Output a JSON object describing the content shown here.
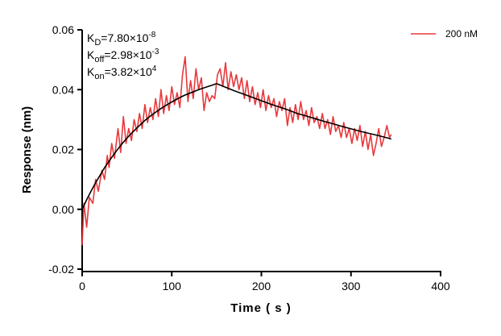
{
  "chart_data": {
    "type": "line",
    "title": "",
    "xlabel": "Time ( s )",
    "ylabel": "Response (nm)",
    "xlim": [
      0,
      400
    ],
    "ylim": [
      -0.02,
      0.06
    ],
    "xticks": [
      0,
      100,
      200,
      300,
      400
    ],
    "xtick_labels": [
      "0",
      "100",
      "200",
      "300",
      "400"
    ],
    "yticks": [
      -0.02,
      0,
      0.02,
      0.04,
      0.06
    ],
    "ytick_labels": [
      "-0.02",
      "0.00",
      "0.02",
      "0.04",
      "0.06"
    ],
    "grid": false,
    "legend": {
      "placement": "top-right",
      "entries": [
        "200 nM"
      ]
    },
    "annotations": [
      {
        "main": "K",
        "sub": "D",
        "text": "=7.80×10",
        "sup": "-8"
      },
      {
        "main": "K",
        "sub": "off",
        "text": "=2.98×10",
        "sup": "-3"
      },
      {
        "main": "K",
        "sub": "on",
        "text": "=3.82×10",
        "sup": "4"
      }
    ],
    "series": [
      {
        "name": "200 nM",
        "color": "#e8393c",
        "x": [
          0,
          2,
          5,
          8,
          12,
          15,
          18,
          22,
          25,
          28,
          30,
          33,
          36,
          40,
          43,
          46,
          49,
          52,
          55,
          58,
          61,
          64,
          67,
          70,
          73,
          76,
          79,
          82,
          85,
          88,
          91,
          94,
          97,
          100,
          103,
          106,
          109,
          112,
          115,
          118,
          121,
          124,
          127,
          130,
          133,
          136,
          139,
          142,
          145,
          148,
          151,
          154,
          157,
          160,
          163,
          166,
          169,
          172,
          175,
          178,
          181,
          184,
          187,
          190,
          193,
          196,
          199,
          202,
          205,
          208,
          211,
          214,
          217,
          220,
          223,
          226,
          229,
          232,
          235,
          238,
          241,
          244,
          247,
          250,
          253,
          256,
          259,
          262,
          265,
          268,
          271,
          274,
          277,
          280,
          283,
          286,
          289,
          292,
          295,
          298,
          301,
          304,
          307,
          310,
          313,
          316,
          319,
          322,
          325,
          328,
          331,
          334,
          337,
          340,
          343,
          345
        ],
        "y": [
          -0.012,
          0.002,
          -0.006,
          0.004,
          0.002,
          0.01,
          0.006,
          0.013,
          0.01,
          0.018,
          0.014,
          0.022,
          0.017,
          0.027,
          0.019,
          0.031,
          0.022,
          0.027,
          0.023,
          0.03,
          0.026,
          0.032,
          0.027,
          0.035,
          0.029,
          0.034,
          0.03,
          0.037,
          0.031,
          0.04,
          0.032,
          0.038,
          0.033,
          0.041,
          0.035,
          0.039,
          0.034,
          0.045,
          0.051,
          0.036,
          0.043,
          0.037,
          0.047,
          0.04,
          0.044,
          0.033,
          0.039,
          0.036,
          0.038,
          0.037,
          0.045,
          0.047,
          0.041,
          0.049,
          0.04,
          0.046,
          0.041,
          0.045,
          0.04,
          0.044,
          0.037,
          0.043,
          0.036,
          0.041,
          0.035,
          0.039,
          0.034,
          0.04,
          0.033,
          0.038,
          0.034,
          0.037,
          0.031,
          0.036,
          0.033,
          0.037,
          0.028,
          0.034,
          0.029,
          0.035,
          0.03,
          0.036,
          0.03,
          0.033,
          0.028,
          0.034,
          0.029,
          0.031,
          0.027,
          0.032,
          0.027,
          0.03,
          0.025,
          0.031,
          0.026,
          0.028,
          0.024,
          0.029,
          0.024,
          0.027,
          0.022,
          0.027,
          0.023,
          0.028,
          0.021,
          0.026,
          0.02,
          0.025,
          0.018,
          0.022,
          0.027,
          0.021,
          0.024,
          0.028,
          0.024,
          0.025
        ]
      },
      {
        "role": "fit",
        "color": "#000000",
        "x": [
          0,
          5,
          10,
          15,
          20,
          25,
          30,
          35,
          40,
          45,
          50,
          55,
          60,
          65,
          70,
          75,
          80,
          85,
          90,
          95,
          100,
          105,
          110,
          115,
          120,
          125,
          130,
          135,
          140,
          145,
          150,
          160,
          170,
          180,
          190,
          200,
          210,
          220,
          230,
          240,
          250,
          260,
          270,
          280,
          290,
          300,
          310,
          320,
          330,
          340,
          345
        ],
        "y": [
          0,
          0.0032,
          0.0061,
          0.0089,
          0.0114,
          0.0139,
          0.0161,
          0.0182,
          0.0202,
          0.0221,
          0.0238,
          0.0254,
          0.0269,
          0.0283,
          0.0297,
          0.0309,
          0.032,
          0.0331,
          0.0341,
          0.035,
          0.0359,
          0.0367,
          0.0375,
          0.0382,
          0.0388,
          0.0394,
          0.04,
          0.0405,
          0.041,
          0.0415,
          0.042,
          0.0408,
          0.0396,
          0.0385,
          0.0374,
          0.0363,
          0.0352,
          0.0342,
          0.0332,
          0.032,
          0.0312,
          0.0303,
          0.0294,
          0.0286,
          0.0277,
          0.0269,
          0.0261,
          0.0254,
          0.0247,
          0.0239,
          0.0235
        ]
      }
    ]
  }
}
